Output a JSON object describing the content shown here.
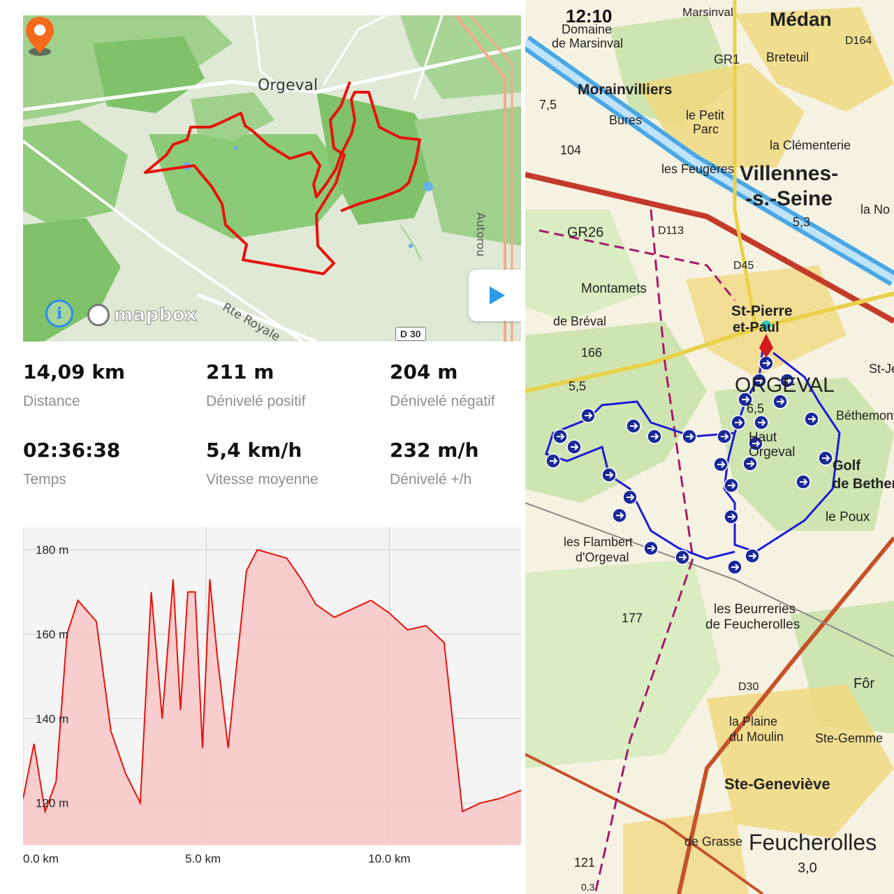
{
  "left_map": {
    "place_label": "Orgeval",
    "road_label": "Rte Royale",
    "highway_label": "Autorou",
    "road_badge": "D 30",
    "attribution": "mapbox",
    "info_icon": "info-icon",
    "play_icon": "play-icon",
    "pin_icon": "map-pin-icon",
    "route_color": "#e8120c"
  },
  "stats": [
    {
      "value": "14,09 km",
      "label": "Distance"
    },
    {
      "value": "211 m",
      "label": "Dénivelé positif"
    },
    {
      "value": "204 m",
      "label": "Dénivelé négatif"
    },
    {
      "value": "02:36:38",
      "label": "Temps"
    },
    {
      "value": "5,4 km/h",
      "label": "Vitesse moyenne"
    },
    {
      "value": "232 m/h",
      "label": "Dénivelé +/h"
    }
  ],
  "chart_data": {
    "type": "area",
    "x": [
      0.0,
      0.3,
      0.6,
      0.9,
      1.2,
      1.5,
      2.0,
      2.4,
      2.8,
      3.2,
      3.5,
      3.8,
      4.1,
      4.3,
      4.5,
      4.7,
      4.9,
      5.1,
      5.3,
      5.6,
      5.8,
      6.1,
      6.4,
      6.8,
      7.2,
      7.6,
      8.0,
      8.5,
      9.0,
      9.5,
      10.0,
      10.5,
      11.0,
      11.5,
      12.0,
      12.5,
      13.0,
      13.3,
      13.6
    ],
    "values": [
      121,
      134,
      118,
      125,
      160,
      168,
      163,
      137,
      127,
      120,
      170,
      140,
      173,
      142,
      170,
      170,
      133,
      173,
      155,
      133,
      150,
      175,
      180,
      179,
      178,
      173,
      167,
      164,
      166,
      168,
      165,
      161,
      162,
      158,
      118,
      120,
      121,
      122,
      123
    ],
    "xticks": [
      "0.0 km",
      "5.0 km",
      "10.0 km"
    ],
    "xtick_values": [
      0,
      5,
      10
    ],
    "yticks": [
      "120 m",
      "140 m",
      "160 m",
      "180 m"
    ],
    "ytick_values": [
      120,
      140,
      160,
      180
    ],
    "xlim": [
      0,
      13.6
    ],
    "ylim": [
      110,
      182
    ],
    "line_color": "#e8120c",
    "fill_color": "#f7c6c6",
    "grid": true
  },
  "right_map": {
    "status_time": "12:10",
    "labels": [
      "Marsinval",
      "Médan",
      "Domaine",
      "de Marsinval",
      "Morainvilliers",
      "Bures",
      "le Petit",
      "Parc",
      "Breteuil",
      "la Clémenterie",
      "les Feugères",
      "Villennes-",
      "-s.-Seine",
      "la No",
      "5,3",
      "104",
      "7,5",
      "GR26",
      "GR1",
      "D113",
      "D45",
      "D164",
      "Montamets",
      "St-Pierre",
      "et-Paul",
      "de Bréval",
      "166",
      "5,5",
      "ORGEVAL",
      "6,5",
      "St-Je",
      "Béthemont",
      "Haut",
      "Orgeval",
      "Golf",
      "de Bethemon",
      "le Poux",
      "les Flambert",
      "d'Orgeval",
      "177",
      "les Beurreries",
      "de Feucherolles",
      "D30",
      "Fôr",
      "la Plaine",
      "du Moulin",
      "Ste-Gemme",
      "Ste-Geneviève",
      "de Grasse",
      "Feucherolles",
      "3,0",
      "121",
      "0,3"
    ],
    "route_color": "#1a1ad8",
    "arrow_icon": "direction-arrow-icon"
  }
}
